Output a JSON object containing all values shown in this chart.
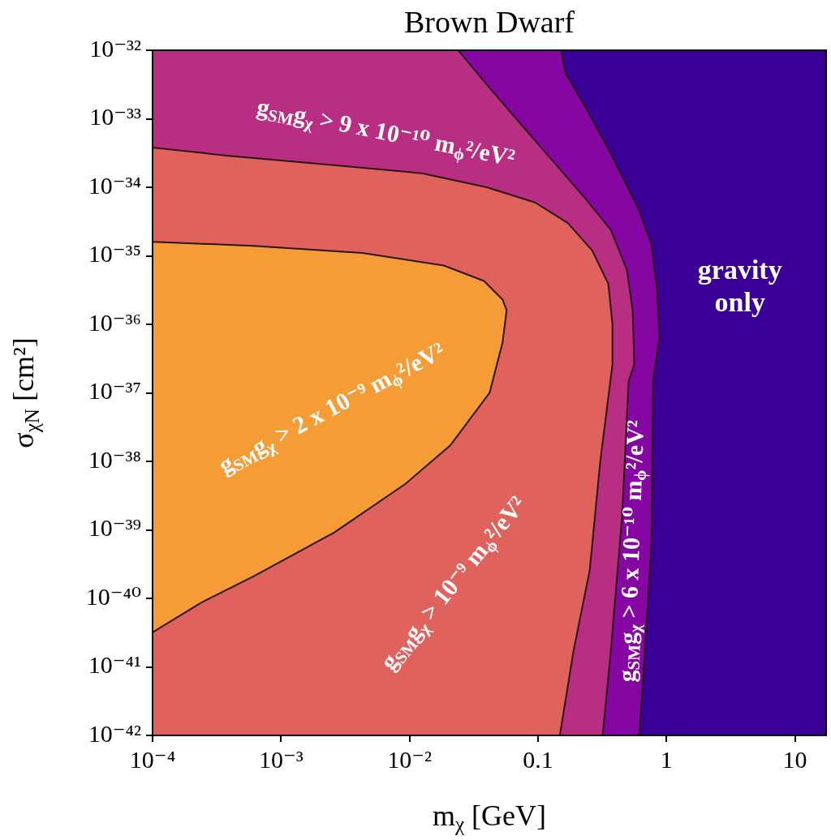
{
  "chart_data": {
    "type": "area",
    "title": "Brown Dwarf",
    "xlabel": "m$_{χ}$ [GeV]",
    "ylabel": "σ$_{χN}$ [cm²]",
    "log": "xy",
    "legend": false,
    "xlim": [
      0.0001,
      17.5
    ],
    "ylim": [
      1e-42,
      1e-32
    ],
    "xticks": [
      {
        "value": 0.0001,
        "label": "10⁻⁴"
      },
      {
        "value": 0.001,
        "label": "10⁻³"
      },
      {
        "value": 0.01,
        "label": "10⁻²"
      },
      0.1,
      1,
      10
    ],
    "yticks": [
      {
        "value": 1e-42,
        "label": "10⁻⁴²"
      },
      {
        "value": 1e-41,
        "label": "10⁻⁴¹"
      },
      {
        "value": 1e-40,
        "label": "10⁻⁴⁰"
      },
      {
        "value": 1e-39,
        "label": "10⁻³⁹"
      },
      {
        "value": 1e-38,
        "label": "10⁻³⁸"
      },
      {
        "value": 1e-37,
        "label": "10⁻³⁷"
      },
      {
        "value": 1e-36,
        "label": "10⁻³⁶"
      },
      {
        "value": 1e-35,
        "label": "10⁻³⁵"
      },
      {
        "value": 1e-34,
        "label": "10⁻³⁴"
      },
      {
        "value": 1e-33,
        "label": "10⁻³³"
      },
      {
        "value": 1e-32,
        "label": "10⁻³²"
      }
    ],
    "series": [
      {
        "name": "gravity only",
        "color": "#3b0096",
        "x": [
          0.0001,
          17.5,
          17.5,
          0.0001
        ],
        "values": [
          1e-32,
          1e-32,
          1e-42,
          1e-42
        ]
      },
      {
        "name": "g$_{SM}$g$_{χ}$ > 6 x 10⁻¹⁰ m$_{ϕ}$²/eV²",
        "color": "#8606a4",
        "x": [
          0.0001,
          0.152,
          0.163,
          0.239,
          0.369,
          0.605,
          0.764,
          0.846,
          0.883,
          0.787,
          0.764,
          0.659,
          0.613,
          0.0001
        ],
        "values": [
          1e-32,
          1e-32,
          4.7e-33,
          1.4e-33,
          3.1e-34,
          4.9e-35,
          1.5e-35,
          3.2e-36,
          6.3e-37,
          1.5e-37,
          6.3e-40,
          6.8e-42,
          1e-42,
          1e-42
        ]
      },
      {
        "name": "g$_{SM}$g$_{χ}$ > 9 x 10⁻¹⁰ m$_{ϕ}$²/eV²",
        "color": "#b82e82",
        "x": [
          0.0001,
          0.024,
          0.0382,
          0.0684,
          0.122,
          0.229,
          0.369,
          0.493,
          0.546,
          0.562,
          0.508,
          0.452,
          0.369,
          0.319,
          0.0001
        ],
        "values": [
          1e-32,
          1e-32,
          3.5e-33,
          9.8e-34,
          2.8e-34,
          7.2e-35,
          2.4e-35,
          6.2e-36,
          1.6e-36,
          2.6e-37,
          1.5e-37,
          1.6e-39,
          1.7e-41,
          1e-42,
          1e-42
        ]
      },
      {
        "name": "g$_{SM}$g$_{χ}$ > 10⁻⁹ m$_{ϕ}$²/eV²",
        "color": "#e0625c",
        "x": [
          0.0001,
          0.00038,
          0.0026,
          0.0125,
          0.04,
          0.095,
          0.171,
          0.264,
          0.353,
          0.38,
          0.38,
          0.305,
          0.253,
          0.189,
          0.148,
          0.0001
        ],
        "values": [
          3.8e-34,
          2.9e-34,
          2.1e-34,
          1.6e-34,
          1e-34,
          6e-35,
          3e-35,
          1.2e-35,
          3.9e-36,
          1e-36,
          2.6e-37,
          9.8e-39,
          2.6e-40,
          1.7e-41,
          1e-42,
          1e-42
        ]
      },
      {
        "name": "g$_{SM}$g$_{χ}$ > 2 x 10⁻⁹ m$_{ϕ}$²/eV²",
        "color": "#f59c37",
        "x": [
          0.0001,
          0.00061,
          0.0043,
          0.0185,
          0.038,
          0.053,
          0.057,
          0.053,
          0.042,
          0.0207,
          0.0093,
          0.0026,
          0.00061,
          0.00024,
          0.0001
        ],
        "values": [
          1.6e-35,
          1.4e-35,
          1.1e-35,
          7.2e-36,
          4.3e-36,
          2.3e-36,
          1.6e-36,
          5.4e-37,
          1e-37,
          1.7e-38,
          4.7e-39,
          9.2e-40,
          2.1e-40,
          8.7e-41,
          3.2e-41
        ]
      }
    ]
  }
}
